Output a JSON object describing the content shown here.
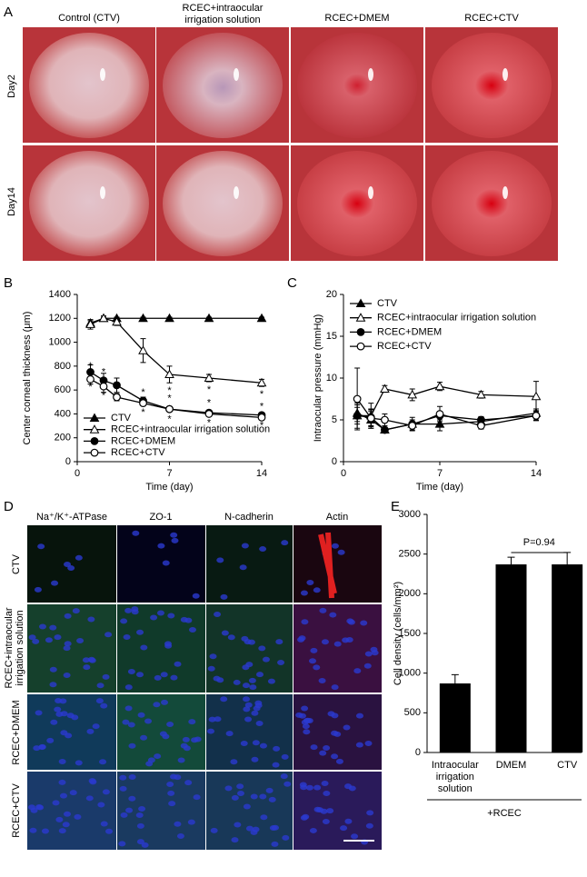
{
  "figure": {
    "panel_labels": [
      "A",
      "B",
      "C",
      "D",
      "E"
    ],
    "panel_a": {
      "columns": [
        "Control (CTV)",
        "RCEC+intraocular",
        "irrigation solution",
        "RCEC+DMEM",
        "RCEC+CTV"
      ],
      "rows": [
        "Day2",
        "Day14"
      ]
    },
    "panel_d": {
      "columns": [
        "Na⁺/K⁺-ATPase",
        "ZO-1",
        "N-cadherin",
        "Actin"
      ],
      "rows": [
        "CTV",
        "RCEC+intraocular",
        "irrigation solution",
        "RCEC+DMEM",
        "RCEC+CTV"
      ]
    }
  },
  "chart_data": [
    {
      "type": "line",
      "y_label": "Center corneal thickness (μm)",
      "x_label": "Time (day)",
      "x": [
        1,
        2,
        3,
        5,
        7,
        10,
        14
      ],
      "xlim": [
        0,
        14
      ],
      "xticks": [
        0,
        7,
        14
      ],
      "ylim": [
        0,
        1400
      ],
      "yticks": [
        0,
        200,
        400,
        600,
        800,
        1000,
        1200,
        1400
      ],
      "legend": "lower left",
      "significance_label": "*",
      "series": [
        {
          "name": "CTV",
          "color": "#000000",
          "marker": "triangle-filled",
          "values": [
            1160,
            1200,
            1200,
            1200,
            1200,
            1200,
            1200
          ],
          "errors": [
            20,
            10,
            10,
            10,
            10,
            10,
            10
          ],
          "significant": [
            false,
            false,
            false,
            false,
            false,
            false,
            false
          ],
          "significance_position": "above"
        },
        {
          "name": "RCEC+intraocular irrigation solution",
          "color": "#000000",
          "marker": "triangle-open",
          "values": [
            1150,
            1200,
            1170,
            930,
            730,
            700,
            660
          ],
          "errors": [
            40,
            20,
            30,
            100,
            70,
            30,
            30
          ],
          "significant": [
            false,
            false,
            false,
            false,
            true,
            true,
            true
          ],
          "significance_position": "above"
        },
        {
          "name": "RCEC+DMEM",
          "color": "#000000",
          "marker": "circle-filled",
          "values": [
            750,
            680,
            640,
            510,
            440,
            410,
            390
          ],
          "errors": [
            60,
            60,
            60,
            30,
            20,
            20,
            20
          ],
          "significant": [
            true,
            true,
            true,
            true,
            true,
            true,
            true
          ],
          "significance_position": "above"
        },
        {
          "name": "RCEC+CTV",
          "color": "#000000",
          "marker": "circle-open",
          "values": [
            690,
            630,
            540,
            490,
            440,
            400,
            370
          ],
          "errors": [
            40,
            50,
            30,
            20,
            20,
            20,
            20
          ],
          "significant": [
            true,
            true,
            true,
            true,
            true,
            true,
            true
          ],
          "significance_position": "below"
        }
      ]
    },
    {
      "type": "line",
      "y_label": "Intraocular pressure (mmHg)",
      "x_label": "Time (day)",
      "x": [
        1,
        2,
        3,
        5,
        7,
        10,
        14
      ],
      "xlim": [
        0,
        14
      ],
      "xticks": [
        0,
        7,
        14
      ],
      "ylim": [
        0,
        20
      ],
      "yticks": [
        0,
        5,
        10,
        15,
        20
      ],
      "legend": "upper left",
      "series": [
        {
          "name": "CTV",
          "color": "#000000",
          "marker": "triangle-filled",
          "values": [
            5.8,
            5.0,
            3.8,
            4.5,
            4.5,
            4.8,
            5.8
          ],
          "errors": [
            1.0,
            1.0,
            0.3,
            0.8,
            0.8,
            0.5,
            0.5
          ]
        },
        {
          "name": "RCEC+intraocular irrigation solution",
          "color": "#000000",
          "marker": "triangle-open",
          "values": [
            5.5,
            5.5,
            8.7,
            8.0,
            9.0,
            8.0,
            7.8
          ],
          "errors": [
            1.5,
            1.5,
            0.4,
            0.7,
            0.5,
            0.4,
            1.8
          ]
        },
        {
          "name": "RCEC+DMEM",
          "color": "#000000",
          "marker": "circle-filled",
          "values": [
            5.5,
            5.3,
            3.8,
            4.5,
            5.5,
            5.0,
            5.5
          ],
          "errors": [
            1.0,
            1.0,
            0.3,
            0.5,
            0.5,
            0.4,
            0.5
          ]
        },
        {
          "name": "RCEC+CTV",
          "color": "#000000",
          "marker": "circle-open",
          "values": [
            7.5,
            5.2,
            5.0,
            4.3,
            5.7,
            4.3,
            5.5
          ],
          "errors": [
            3.7,
            1.0,
            0.7,
            0.5,
            0.9,
            0.4,
            0.6
          ]
        }
      ]
    },
    {
      "type": "bar",
      "y_label": "Cell density (cells/mm²)",
      "categories": [
        "Intraocular irrigation solution",
        "DMEM",
        "CTV"
      ],
      "values": [
        870,
        2370,
        2370
      ],
      "errors": [
        110,
        90,
        150
      ],
      "color": "#000000",
      "ylim": [
        0,
        3000
      ],
      "yticks": [
        0,
        500,
        1000,
        1500,
        2000,
        2500,
        3000
      ],
      "annotation": "P=0.94",
      "group_label": "+RCEC"
    }
  ]
}
